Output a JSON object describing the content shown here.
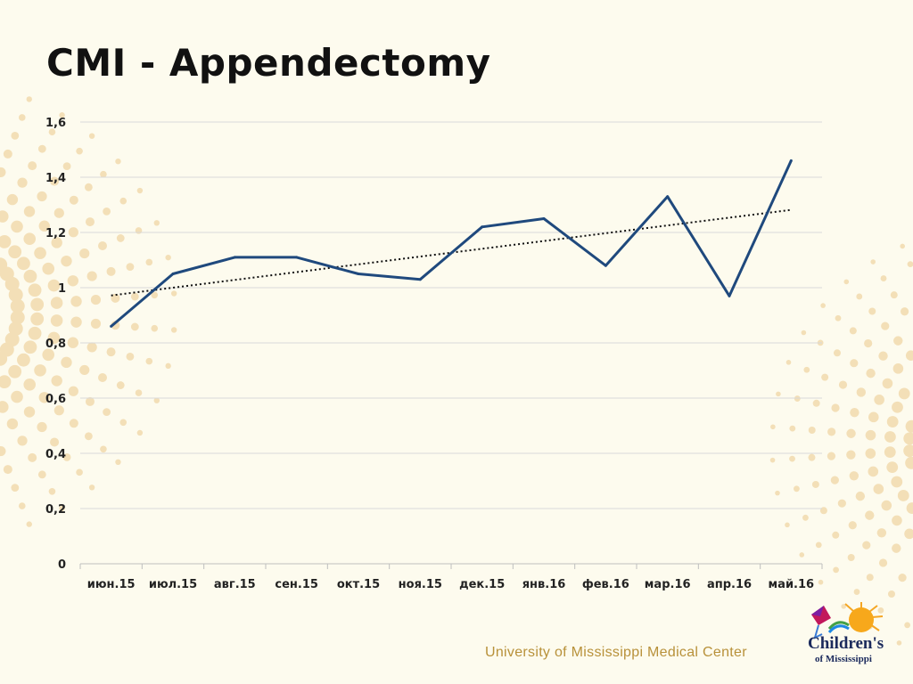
{
  "slide": {
    "title": "CMI - Appendectomy",
    "footer_text": "University of Mississippi Medical Center",
    "logo_line1": "Children's",
    "logo_line2": "of Mississippi"
  },
  "colors": {
    "background": "#fdfbee",
    "line": "#1f497d",
    "gold": "#b8913a",
    "dots": "#f3dfb7"
  },
  "chart_data": {
    "type": "line",
    "title": "",
    "xlabel": "",
    "ylabel": "",
    "categories": [
      "июн.15",
      "июл.15",
      "авг.15",
      "сен.15",
      "окт.15",
      "ноя.15",
      "дек.15",
      "янв.16",
      "фев.16",
      "мар.16",
      "апр.16",
      "май.16"
    ],
    "series": [
      {
        "name": "CMI",
        "values": [
          0.86,
          1.05,
          1.11,
          1.11,
          1.05,
          1.03,
          1.22,
          1.25,
          1.08,
          1.33,
          0.97,
          1.46
        ]
      }
    ],
    "trendline": {
      "type": "linear",
      "style": "dotted"
    },
    "ylim": [
      0,
      1.6
    ],
    "yticks": [
      "0",
      "0,2",
      "0,4",
      "0,6",
      "0,8",
      "1",
      "1,2",
      "1,4",
      "1,6"
    ],
    "grid": true,
    "legend": "none"
  }
}
